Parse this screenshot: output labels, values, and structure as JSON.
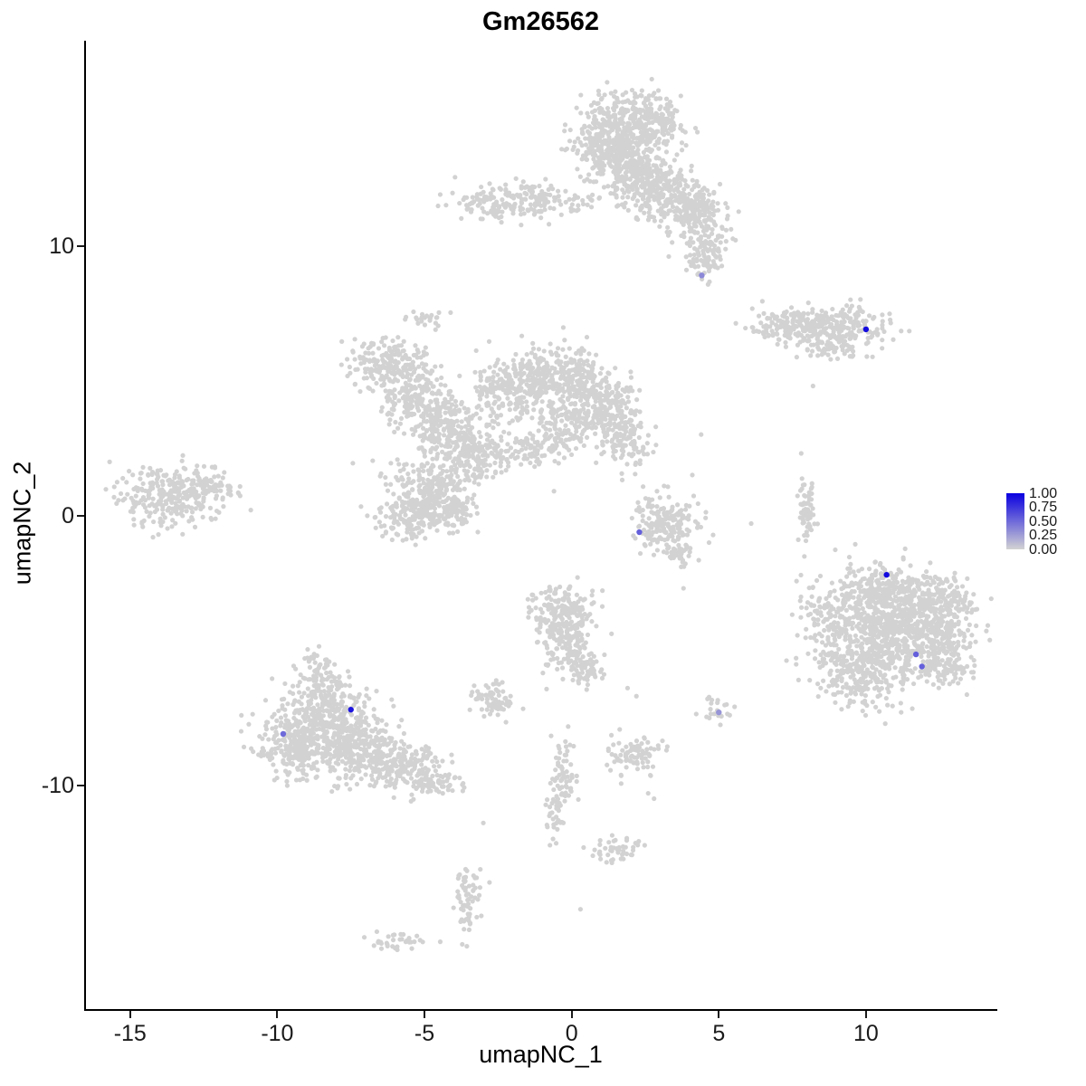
{
  "chart_data": {
    "type": "scatter",
    "title": "Gm26562",
    "xlabel": "umapNC_1",
    "ylabel": "umapNC_2",
    "xlim": [
      -16.5,
      14.4
    ],
    "ylim": [
      -18.3,
      17.6
    ],
    "x_tick_labels": [
      "-15",
      "-10",
      "-5",
      "0",
      "5",
      "10"
    ],
    "x_tick_values": [
      -15,
      -10,
      -5,
      0,
      5,
      10
    ],
    "y_tick_labels": [
      "10",
      "0",
      "-10"
    ],
    "y_tick_values": [
      10,
      0,
      -10
    ],
    "grid": false,
    "legend_position": "right",
    "point_color": "#d2d2d2",
    "point_radius": 2.6,
    "highlight_radius": 3.2,
    "colorscale": {
      "low": "#d3d3d3",
      "high": "#0a00e0"
    },
    "legend": {
      "labels": [
        "1.00",
        "0.75",
        "0.50",
        "0.25",
        "0.00"
      ]
    },
    "background_clusters": [
      [
        1.7,
        14.3,
        0.9,
        0.65,
        420
      ],
      [
        1.2,
        13.3,
        0.5,
        0.5,
        150
      ],
      [
        2.3,
        12.7,
        0.55,
        0.55,
        200
      ],
      [
        3.2,
        11.9,
        0.7,
        0.5,
        220
      ],
      [
        4.2,
        11.2,
        0.5,
        0.45,
        150
      ],
      [
        4.6,
        10.1,
        0.35,
        0.5,
        80
      ],
      [
        4.5,
        9.3,
        0.25,
        0.35,
        40
      ],
      [
        2.8,
        14.8,
        0.5,
        0.4,
        100
      ],
      [
        -2.4,
        11.6,
        0.75,
        0.35,
        140
      ],
      [
        -1.1,
        11.85,
        0.35,
        0.25,
        45
      ],
      [
        0.1,
        11.65,
        0.6,
        0.18,
        35
      ],
      [
        7.5,
        7.05,
        0.75,
        0.3,
        170
      ],
      [
        9.2,
        7.0,
        0.8,
        0.35,
        190
      ],
      [
        8.8,
        6.15,
        0.5,
        0.2,
        55
      ],
      [
        -6.3,
        5.6,
        0.7,
        0.5,
        190
      ],
      [
        -5.3,
        4.4,
        0.6,
        0.6,
        200
      ],
      [
        -4.3,
        3.3,
        0.55,
        0.5,
        170
      ],
      [
        -3.3,
        2.3,
        0.6,
        0.5,
        190
      ],
      [
        -4.9,
        1.0,
        0.75,
        0.6,
        240
      ],
      [
        -5.4,
        -0.1,
        0.6,
        0.4,
        140
      ],
      [
        -4.1,
        0.2,
        0.4,
        0.4,
        80
      ],
      [
        -2.2,
        4.6,
        0.6,
        0.6,
        210
      ],
      [
        -1.0,
        5.3,
        0.5,
        0.5,
        170
      ],
      [
        0.3,
        5.0,
        0.5,
        0.55,
        170
      ],
      [
        1.2,
        4.0,
        0.5,
        0.55,
        170
      ],
      [
        1.8,
        2.8,
        0.45,
        0.5,
        120
      ],
      [
        -0.3,
        3.4,
        0.55,
        0.5,
        140
      ],
      [
        -1.4,
        2.3,
        0.5,
        0.3,
        70
      ],
      [
        -4.9,
        7.3,
        0.35,
        0.2,
        25
      ],
      [
        -13.7,
        0.7,
        0.85,
        0.55,
        260
      ],
      [
        -12.3,
        1.1,
        0.5,
        0.35,
        70
      ],
      [
        3.2,
        -0.3,
        0.55,
        0.55,
        190
      ],
      [
        3.6,
        -1.4,
        0.3,
        0.25,
        40
      ],
      [
        8.0,
        0.3,
        0.15,
        0.6,
        60
      ],
      [
        11.2,
        -4.3,
        1.05,
        1.0,
        800
      ],
      [
        9.7,
        -5.8,
        0.7,
        0.65,
        230
      ],
      [
        8.7,
        -3.7,
        0.5,
        0.65,
        130
      ],
      [
        12.5,
        -3.3,
        0.55,
        0.5,
        160
      ],
      [
        10.4,
        -2.7,
        0.7,
        0.4,
        170
      ],
      [
        12.9,
        -5.3,
        0.4,
        0.5,
        90
      ],
      [
        -8.3,
        -7.6,
        0.9,
        0.8,
        420
      ],
      [
        -9.4,
        -8.5,
        0.6,
        0.6,
        220
      ],
      [
        -7.0,
        -8.8,
        0.7,
        0.55,
        230
      ],
      [
        -5.7,
        -9.4,
        0.6,
        0.4,
        140
      ],
      [
        -4.7,
        -9.9,
        0.4,
        0.3,
        60
      ],
      [
        -8.6,
        -6.0,
        0.35,
        0.5,
        70
      ],
      [
        -0.4,
        -3.6,
        0.5,
        0.5,
        170
      ],
      [
        -0.1,
        -4.9,
        0.45,
        0.55,
        150
      ],
      [
        0.5,
        -5.8,
        0.3,
        0.3,
        50
      ],
      [
        -2.7,
        -6.8,
        0.4,
        0.3,
        75
      ],
      [
        5.0,
        -7.4,
        0.22,
        0.3,
        22
      ],
      [
        -0.3,
        -9.5,
        0.22,
        0.65,
        65
      ],
      [
        -0.6,
        -11.2,
        0.18,
        0.4,
        30
      ],
      [
        2.2,
        -8.9,
        0.45,
        0.35,
        85
      ],
      [
        -3.5,
        -14.2,
        0.22,
        0.7,
        65
      ],
      [
        1.5,
        -12.4,
        0.4,
        0.28,
        45
      ],
      [
        -6.0,
        -15.8,
        0.5,
        0.2,
        35
      ]
    ],
    "singleton_points": [
      [
        2.9,
        0.9
      ],
      [
        4.1,
        1.5
      ],
      [
        7.8,
        2.3
      ],
      [
        8.2,
        4.8
      ],
      [
        6.1,
        -0.3
      ],
      [
        3.8,
        -2.7
      ],
      [
        1.9,
        -6.4
      ],
      [
        2.2,
        -6.7
      ],
      [
        2.6,
        -10.3
      ],
      [
        2.8,
        -10.5
      ],
      [
        0.2,
        -2.3
      ],
      [
        4.4,
        3.0
      ],
      [
        -0.6,
        0.9
      ],
      [
        -3.0,
        -11.4
      ],
      [
        0.3,
        -14.6
      ],
      [
        7.7,
        -0.9
      ],
      [
        -10.9,
        0.2
      ],
      [
        3.3,
        9.6
      ],
      [
        3.9,
        9.1
      ]
    ],
    "expressing_cells": [
      {
        "x": 4.42,
        "y": 8.9,
        "value": 0.35
      },
      {
        "x": 10.0,
        "y": 6.9,
        "value": 0.95
      },
      {
        "x": 2.3,
        "y": -0.62,
        "value": 0.55
      },
      {
        "x": 10.7,
        "y": -2.2,
        "value": 0.95
      },
      {
        "x": 11.7,
        "y": -5.15,
        "value": 0.55
      },
      {
        "x": 11.9,
        "y": -5.6,
        "value": 0.55
      },
      {
        "x": -7.5,
        "y": -7.2,
        "value": 0.9
      },
      {
        "x": -9.8,
        "y": -8.1,
        "value": 0.5
      },
      {
        "x": 5.0,
        "y": -7.3,
        "value": 0.3
      }
    ]
  }
}
